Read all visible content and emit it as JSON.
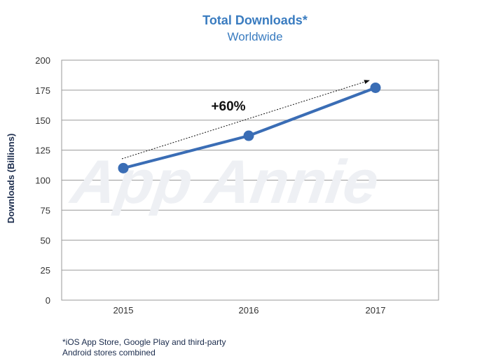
{
  "chart_data": {
    "type": "line",
    "title": "Total Downloads*",
    "subtitle": "Worldwide",
    "ylabel": "Downloads (Billions)",
    "xlabel": "",
    "categories": [
      "2015",
      "2016",
      "2017"
    ],
    "series": [
      {
        "values": [
          110,
          137,
          177
        ],
        "color": "#3a6db5"
      }
    ],
    "ylim": [
      0,
      200
    ],
    "yticks": [
      0,
      25,
      50,
      75,
      100,
      125,
      150,
      175,
      200
    ],
    "grid": true,
    "annotation": {
      "text": "+60%",
      "from": "2015",
      "to": "2017"
    },
    "watermark": "App Annie"
  },
  "footnote": {
    "line1": "*iOS App Store, Google Play and third-party",
    "line2": "Android stores combined"
  }
}
